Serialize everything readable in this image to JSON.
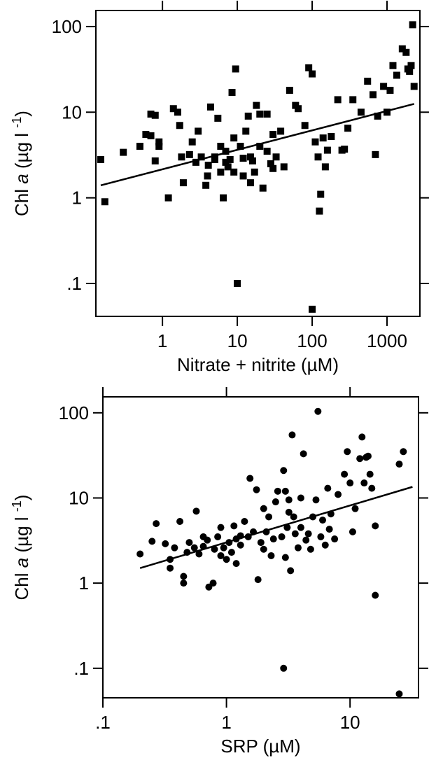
{
  "chart_data": [
    {
      "type": "scatter",
      "marker": "square",
      "color": "#000000",
      "xscale": "log",
      "yscale": "log",
      "xlabel": "Nitrate + nitrite (µM)",
      "ylabel": [
        "Chl ",
        "a",
        "  (µg l ",
        "-1",
        ")"
      ],
      "xlim": [
        0.129,
        2750
      ],
      "ylim": [
        0.0413,
        154
      ],
      "xticks": [
        1,
        10,
        100,
        1000
      ],
      "yticks": [
        {
          "value": 0.1,
          "label": ".1"
        },
        1,
        10,
        100
      ],
      "x": [
        0.15,
        0.17,
        0.3,
        0.5,
        0.6,
        0.7,
        0.8,
        0.9,
        0.9,
        0.8,
        0.7,
        1.4,
        1.6,
        1.2,
        1.9,
        1.7,
        1.8,
        2.3,
        2.5,
        2.8,
        3,
        3.3,
        3.8,
        4.1,
        4.4,
        5,
        5.5,
        6,
        6.5,
        7,
        7.5,
        8,
        8.5,
        9,
        9.5,
        10,
        11,
        12,
        13,
        14,
        15,
        15,
        17,
        18,
        20,
        22,
        25,
        28,
        30,
        33,
        38,
        42,
        50,
        60,
        65,
        80,
        90,
        100,
        100,
        110,
        120,
        125,
        130,
        140,
        150,
        160,
        180,
        220,
        250,
        270,
        300,
        350,
        450,
        550,
        650,
        700,
        750,
        900,
        1000,
        1100,
        1200,
        1350,
        1600,
        1800,
        2000,
        2200,
        2100,
        2300,
        1900,
        5,
        6,
        7,
        20,
        25,
        30,
        12,
        16,
        4,
        9
      ],
      "y": [
        2.8,
        0.9,
        3.4,
        4,
        5.5,
        9.5,
        9.2,
        4.5,
        4,
        2.7,
        5.3,
        11,
        10,
        1,
        1.5,
        7,
        3,
        3.2,
        4.5,
        2.6,
        6,
        3,
        1.4,
        2.4,
        11.5,
        2.8,
        8.5,
        2,
        1,
        3.5,
        2.3,
        2.8,
        17,
        2,
        32,
        0.1,
        4,
        1.8,
        6,
        9,
        3,
        1.5,
        2,
        12,
        9.5,
        1.3,
        9.5,
        2.5,
        5.5,
        3,
        6,
        2.3,
        18,
        12,
        11,
        7,
        33,
        28,
        0.05,
        4.5,
        3,
        0.7,
        1.1,
        5,
        2.3,
        3.6,
        5.2,
        14,
        3.6,
        3.7,
        6.5,
        14,
        10,
        23,
        16,
        3.2,
        9,
        20,
        10,
        18,
        35,
        27,
        55,
        50,
        30,
        105,
        35,
        20,
        32,
        3,
        4,
        2.6,
        4,
        3.5,
        2.2,
        2.9,
        2.7,
        1.8,
        5
      ],
      "fit": {
        "x": [
          0.15,
          2300
        ],
        "y": [
          1.4,
          12.5
        ]
      }
    },
    {
      "type": "scatter",
      "marker": "circle",
      "color": "#000000",
      "xscale": "log",
      "yscale": "log",
      "xlabel": "SRP (µM)",
      "ylabel": [
        "Chl ",
        "a",
        "  (µg l ",
        "-1",
        ")"
      ],
      "xlim": [
        0.1,
        35.8
      ],
      "ylim": [
        0.045,
        154
      ],
      "xticks": [
        {
          "value": 0.1,
          "label": ".1"
        },
        1,
        10
      ],
      "yticks": [
        {
          "value": 0.1,
          "label": ".1"
        },
        1,
        10,
        100
      ],
      "x": [
        0.2,
        0.25,
        0.27,
        0.32,
        0.35,
        0.35,
        0.38,
        0.42,
        0.45,
        0.45,
        0.48,
        0.5,
        0.55,
        0.57,
        0.6,
        0.65,
        0.7,
        0.72,
        0.78,
        0.8,
        0.85,
        0.9,
        0.95,
        1,
        1.05,
        1.1,
        1.15,
        1.2,
        1.3,
        1.4,
        1.5,
        1.55,
        1.65,
        1.75,
        1.8,
        1.9,
        2,
        2.1,
        2.2,
        2.3,
        2.5,
        2.6,
        2.8,
        2.9,
        2.9,
        3,
        3.1,
        3.2,
        3.3,
        3.4,
        3.5,
        3.6,
        3.8,
        4,
        4.2,
        4.4,
        4.6,
        5,
        5.3,
        5.5,
        5.8,
        6,
        6.3,
        6.6,
        7,
        7.5,
        8,
        9,
        9.5,
        10,
        10.5,
        11,
        12,
        12.5,
        13,
        13.5,
        14,
        14.5,
        15,
        16,
        16,
        25,
        27,
        25,
        0.9,
        1.3,
        2.4,
        3.2,
        4.8,
        6.8,
        1.2,
        0.65,
        2,
        3,
        4
      ],
      "y": [
        2.2,
        3.1,
        5,
        2.9,
        1.9,
        1.5,
        2.6,
        5.3,
        1.2,
        1,
        2.3,
        3,
        2.6,
        7,
        2.2,
        3.5,
        3.2,
        0.9,
        1,
        2.5,
        3.5,
        4.5,
        2.6,
        1.9,
        3,
        2.3,
        4.7,
        3.3,
        2.8,
        5.3,
        3.5,
        17,
        4,
        12.5,
        1.1,
        3,
        2.5,
        4,
        6,
        2.1,
        9,
        12,
        3.5,
        0.1,
        21,
        2,
        4.5,
        9.5,
        1.4,
        55,
        6,
        3.8,
        2.6,
        10,
        33,
        3.2,
        3.8,
        6,
        9.5,
        104,
        3.5,
        5.5,
        2.8,
        13,
        6.5,
        3.3,
        11,
        19,
        35,
        15,
        4,
        7.5,
        29,
        52,
        15,
        30,
        31,
        19,
        13,
        4.7,
        0.72,
        25,
        35,
        0.05,
        2.1,
        3.6,
        3.3,
        6.8,
        2.5,
        4.3,
        1.7,
        2.7,
        7.5,
        12,
        4.5
      ],
      "fit": {
        "x": [
          0.2,
          32
        ],
        "y": [
          1.5,
          13.5
        ]
      }
    }
  ]
}
